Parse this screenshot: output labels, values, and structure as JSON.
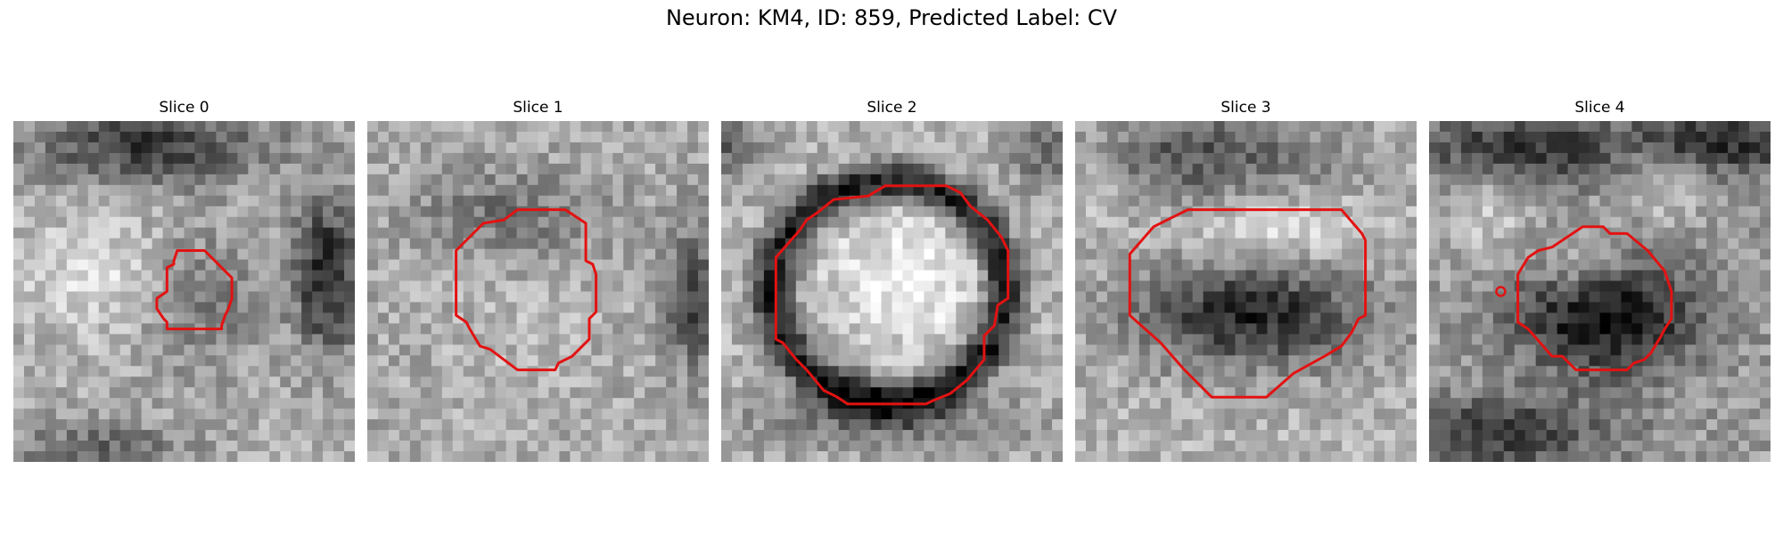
{
  "figure": {
    "title": "Neuron: KM4, ID: 859, Predicted Label: CV"
  },
  "contour_color": "#e31212",
  "panels": [
    {
      "title": "Slice 0"
    },
    {
      "title": "Slice 1"
    },
    {
      "title": "Slice 2"
    },
    {
      "title": "Slice 3"
    },
    {
      "title": "Slice 4"
    }
  ]
}
